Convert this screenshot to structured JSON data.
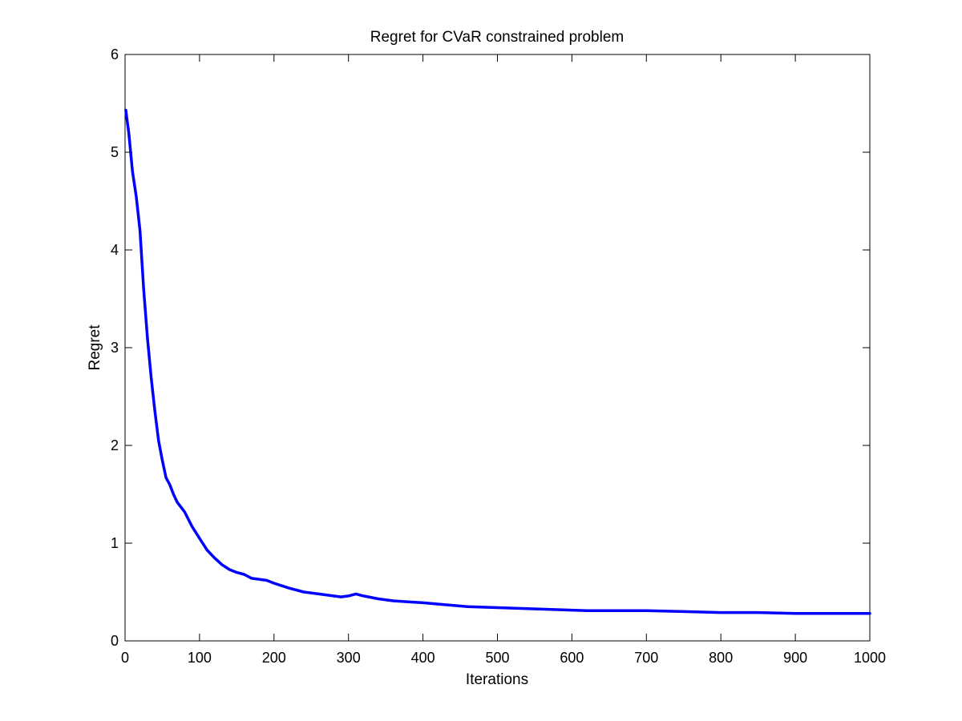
{
  "chart_data": {
    "type": "line",
    "title": "Regret for CVaR constrained problem",
    "xlabel": "Iterations",
    "ylabel": "Regret",
    "xlim": [
      0,
      1000
    ],
    "ylim": [
      0,
      6
    ],
    "xticks": [
      0,
      100,
      200,
      300,
      400,
      500,
      600,
      700,
      800,
      900,
      1000
    ],
    "yticks": [
      0,
      1,
      2,
      3,
      4,
      5,
      6
    ],
    "xtick_labels": [
      "0",
      "100",
      "200",
      "300",
      "400",
      "500",
      "600",
      "700",
      "800",
      "900",
      "1000"
    ],
    "ytick_labels": [
      "0",
      "1",
      "2",
      "3",
      "4",
      "5",
      "6"
    ],
    "grid": false,
    "legend": "none",
    "colors": {
      "series": "#0000ff",
      "axes": "#000000",
      "background": "#ffffff"
    },
    "series": [
      {
        "x": [
          1,
          5,
          10,
          15,
          20,
          25,
          30,
          35,
          40,
          45,
          50,
          55,
          60,
          65,
          70,
          80,
          90,
          100,
          110,
          120,
          130,
          140,
          150,
          160,
          170,
          180,
          190,
          200,
          220,
          240,
          260,
          280,
          290,
          300,
          310,
          320,
          340,
          360,
          380,
          400,
          430,
          460,
          500,
          540,
          580,
          620,
          660,
          700,
          750,
          800,
          850,
          900,
          950,
          1000
        ],
        "y": [
          5.43,
          5.2,
          4.8,
          4.55,
          4.2,
          3.6,
          3.1,
          2.7,
          2.35,
          2.05,
          1.85,
          1.67,
          1.6,
          1.5,
          1.42,
          1.32,
          1.17,
          1.05,
          0.93,
          0.85,
          0.78,
          0.73,
          0.7,
          0.68,
          0.64,
          0.63,
          0.62,
          0.59,
          0.54,
          0.5,
          0.48,
          0.46,
          0.45,
          0.46,
          0.48,
          0.46,
          0.43,
          0.41,
          0.4,
          0.39,
          0.37,
          0.35,
          0.34,
          0.33,
          0.32,
          0.31,
          0.31,
          0.31,
          0.3,
          0.29,
          0.29,
          0.28,
          0.28,
          0.28
        ]
      }
    ]
  }
}
